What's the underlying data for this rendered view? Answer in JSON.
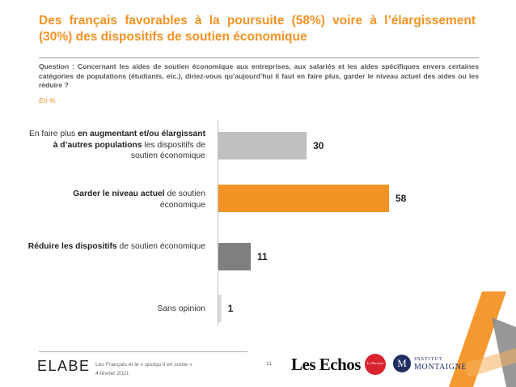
{
  "header": {
    "title": "Des français favorables à la poursuite (58%) voire à l’élargissement (30%) des dispositifs de soutien économique",
    "question": "Question : Concernant les aides de soutien économique aux entreprises, aux salariés et les aides spécifiques envers certaines catégories de populations (étudiants, etc.), diriez-vous qu’aujourd’hui il faut en faire plus, garder le niveau actuel des aides ou les réduire ?",
    "unit": "En %"
  },
  "labels": {
    "c0": {
      "pre": "En faire plus ",
      "bold": "en augmentant et/ou élargissant à d’autres populations",
      "post": " les dispositifs de soutien économique"
    },
    "c1": {
      "pre": "",
      "bold": "Garder le niveau actuel",
      "post": " de soutien économique"
    },
    "c2": {
      "pre": "",
      "bold": "Réduire les dispositifs",
      "post": " de soutien économique"
    },
    "c3": {
      "pre": "Sans opinion",
      "bold": "",
      "post": ""
    }
  },
  "chart_data": {
    "type": "bar",
    "orientation": "horizontal",
    "categories": [
      "En faire plus en augmentant et/ou élargissant à d’autres populations les dispositifs de soutien économique",
      "Garder le niveau actuel de soutien économique",
      "Réduire les dispositifs de soutien économique",
      "Sans opinion"
    ],
    "values": [
      30,
      58,
      11,
      1
    ],
    "value_labels": [
      "30",
      "58",
      "11",
      "1"
    ],
    "colors": [
      "#c0c0c0",
      "#f39325",
      "#7f7f7f",
      "#d9d9d9"
    ],
    "xlim": [
      0,
      58
    ],
    "unit": "En %",
    "grid": false,
    "legend": "none"
  },
  "footer": {
    "brand": "ELABE",
    "line1": "Les Français et le « quoiqu’il en coûte »",
    "line2": "4 février 2021",
    "page_number": "11",
    "partner1": "Les Echos",
    "partner2": "Le Parisien",
    "partner3_initial": "M",
    "partner3_line1": "INSTITUT",
    "partner3_line2": "MONTAIGNE"
  }
}
